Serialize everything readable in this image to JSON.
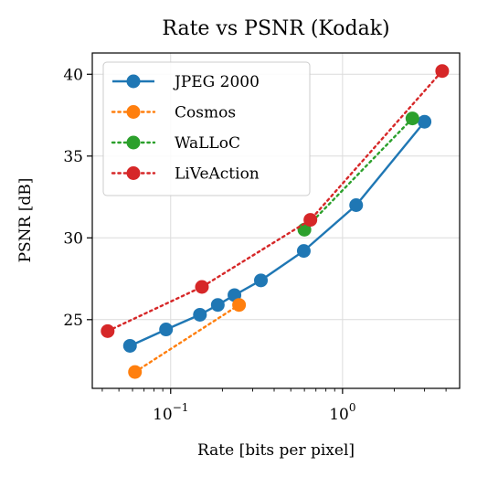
{
  "chart_data": {
    "type": "line",
    "title": "Rate vs PSNR (Kodak)",
    "xlabel": "Rate [bits per pixel]",
    "ylabel": "PSNR [dB]",
    "xscale": "log",
    "xlim": [
      0.035,
      4.8
    ],
    "ylim": [
      20.8,
      41.3
    ],
    "x_ticks": [
      {
        "value": 0.1,
        "base": "10",
        "exp": "−1"
      },
      {
        "value": 1,
        "base": "10",
        "exp": "0"
      }
    ],
    "y_ticks": [
      25,
      30,
      35,
      40
    ],
    "grid": true,
    "legend_position": "top-left",
    "series": [
      {
        "name": "JPEG 2000",
        "color": "#1f77b4",
        "linestyle": "solid",
        "x": [
          0.058,
          0.094,
          0.148,
          0.188,
          0.235,
          0.335,
          0.595,
          1.2,
          3.0
        ],
        "y": [
          23.4,
          24.4,
          25.3,
          25.9,
          26.5,
          27.4,
          29.2,
          32.0,
          37.1
        ]
      },
      {
        "name": "Cosmos",
        "color": "#ff7f0e",
        "linestyle": "dotted",
        "x": [
          0.062,
          0.25
        ],
        "y": [
          21.8,
          25.9
        ]
      },
      {
        "name": "WaLLoC",
        "color": "#2ca02c",
        "linestyle": "dotted",
        "x": [
          0.6,
          2.55
        ],
        "y": [
          30.5,
          37.3
        ]
      },
      {
        "name": "LiVeAction",
        "color": "#d62728",
        "linestyle": "dotted",
        "x": [
          0.043,
          0.152,
          0.65,
          3.8
        ],
        "y": [
          24.3,
          27.0,
          31.1,
          40.2
        ]
      }
    ]
  }
}
